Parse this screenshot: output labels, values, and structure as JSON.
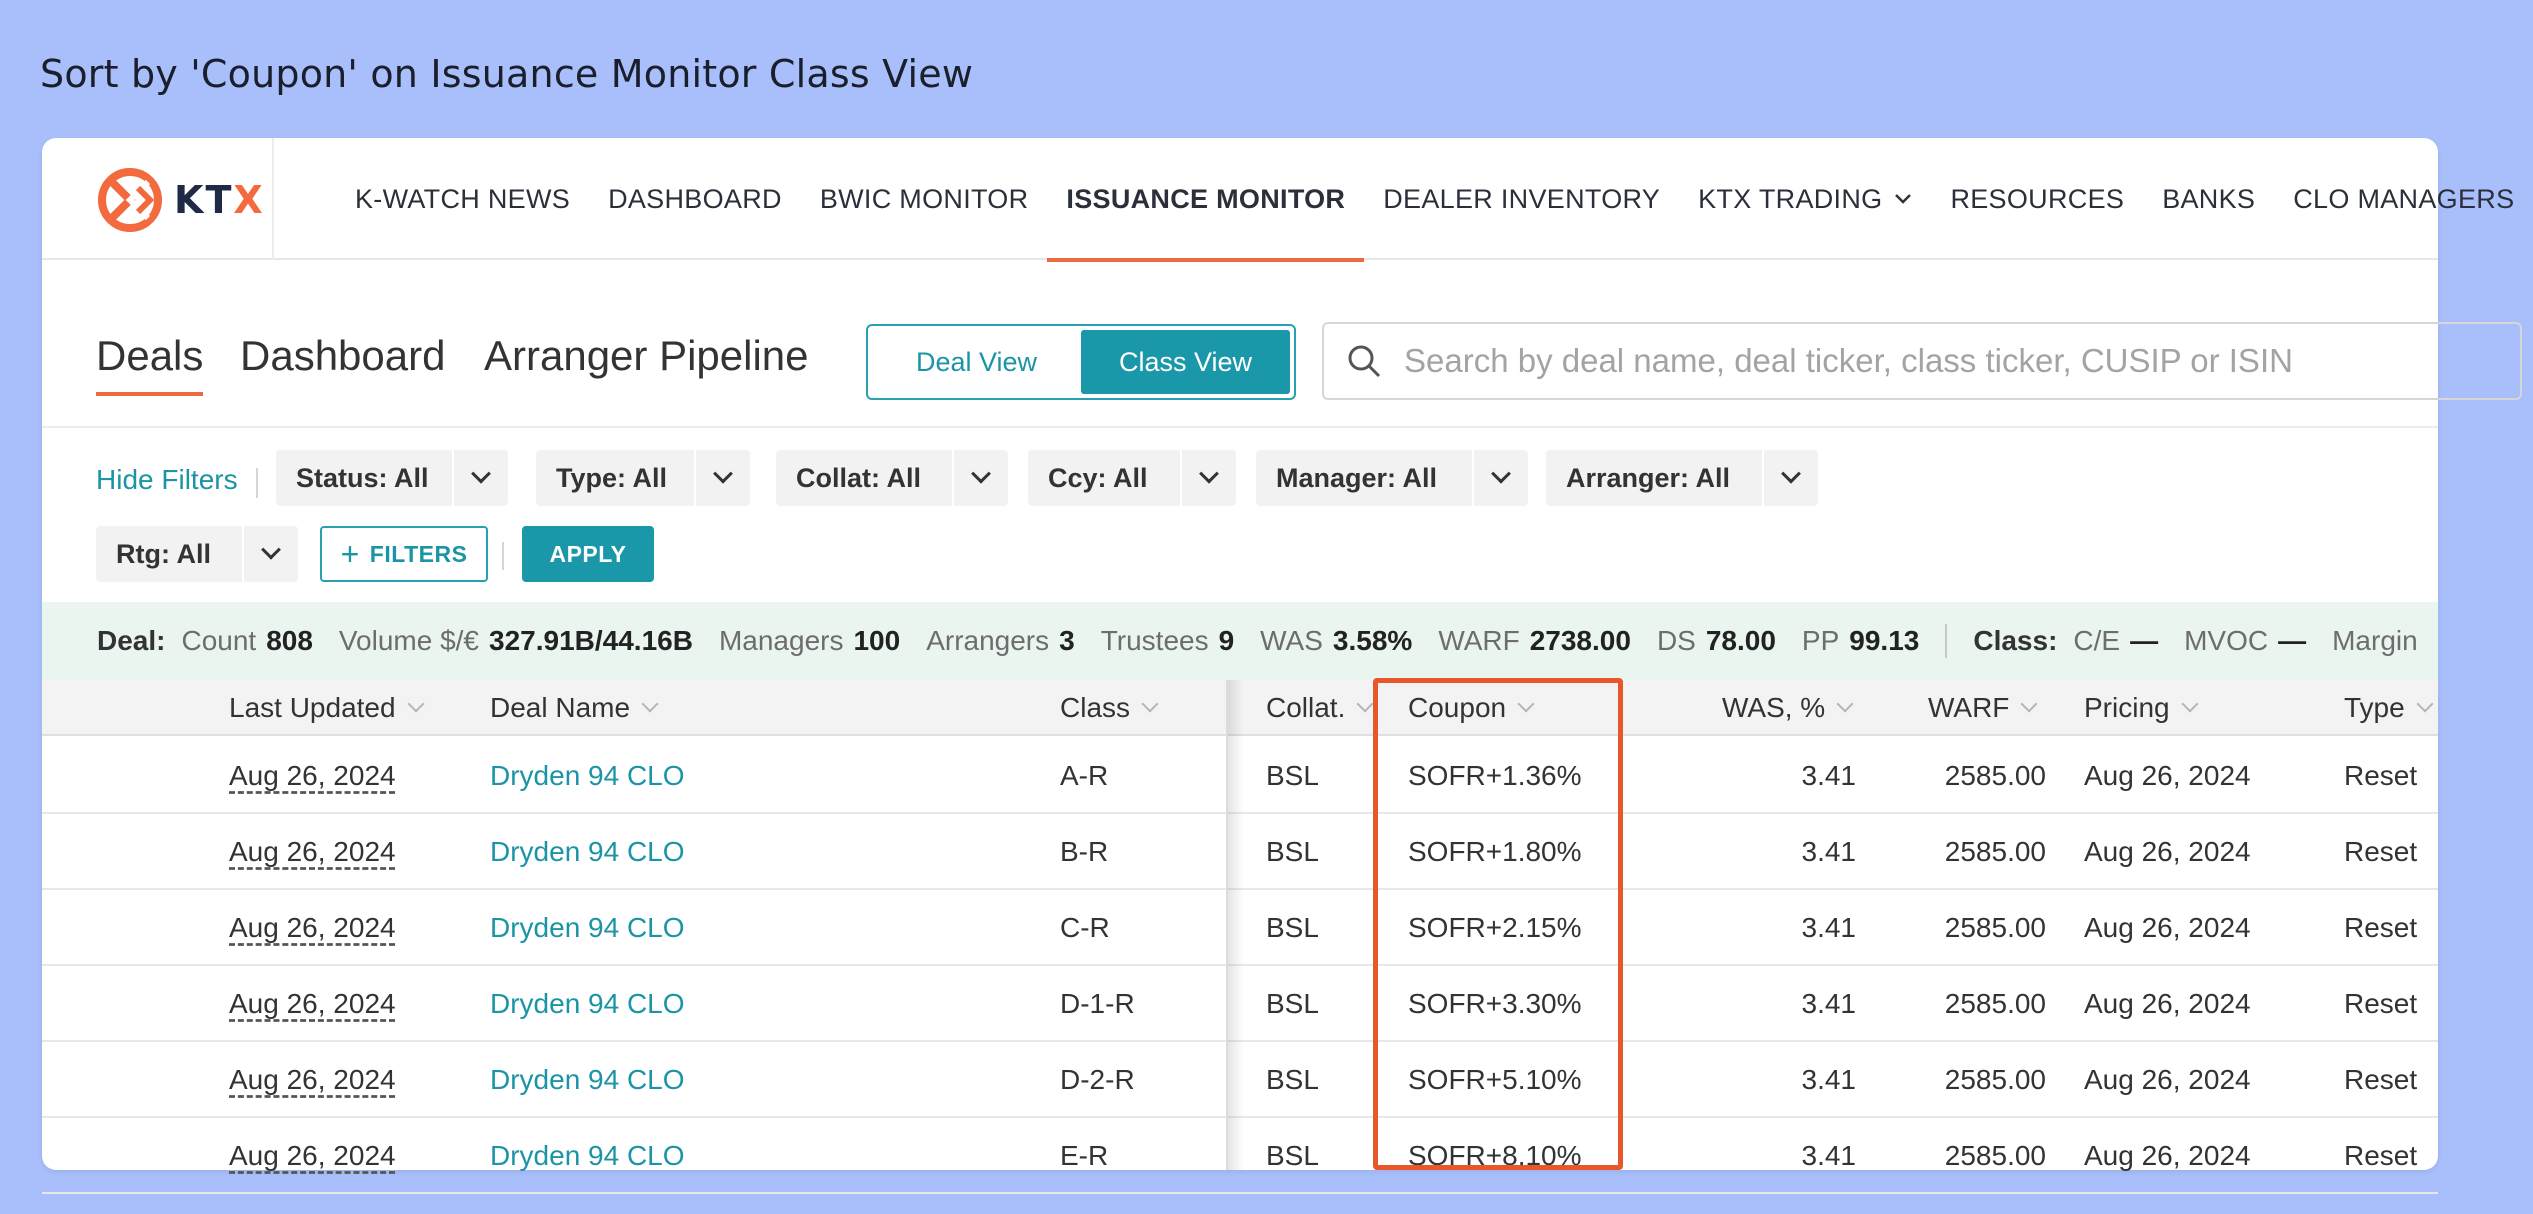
{
  "caption": "Sort by 'Coupon' on Issuance Monitor Class View",
  "logo": {
    "text_main": "KT",
    "text_accent": "X"
  },
  "nav": {
    "items": [
      {
        "label": "K-WATCH NEWS"
      },
      {
        "label": "DASHBOARD"
      },
      {
        "label": "BWIC MONITOR"
      },
      {
        "label": "ISSUANCE MONITOR",
        "active": true
      },
      {
        "label": "DEALER INVENTORY"
      },
      {
        "label": "KTX TRADING",
        "dropdown": true
      },
      {
        "label": "RESOURCES"
      },
      {
        "label": "BANKS"
      },
      {
        "label": "CLO MANAGERS"
      }
    ]
  },
  "subtabs": [
    "Deals",
    "Dashboard",
    "Arranger Pipeline"
  ],
  "view_toggle": {
    "deal": "Deal View",
    "class": "Class View",
    "selected": "Class View"
  },
  "search": {
    "placeholder": "Search by deal name, deal ticker, class ticker, CUSIP or ISIN"
  },
  "filters": {
    "hide_label": "Hide Filters",
    "chips": [
      "Status: All",
      "Type: All",
      "Collat: All",
      "Ccy: All",
      "Manager: All",
      "Arranger: All",
      "Rtg: All"
    ],
    "more_label": "FILTERS",
    "apply_label": "APPLY"
  },
  "summary": {
    "deal_key": "Deal:",
    "count_label": "Count",
    "count": "808",
    "volume_label": "Volume $/€",
    "volume": "327.91B/44.16B",
    "managers_label": "Managers",
    "managers": "100",
    "arrangers_label": "Arrangers",
    "arrangers": "3",
    "trustees_label": "Trustees",
    "trustees": "9",
    "was_label": "WAS",
    "was": "3.58%",
    "warf_label": "WARF",
    "warf": "2738.00",
    "ds_label": "DS",
    "ds": "78.00",
    "pp_label": "PP",
    "pp": "99.13",
    "class_key": "Class:",
    "ce_label": "C/E",
    "ce": "—",
    "mvoc_label": "MVOC",
    "mvoc": "—",
    "margin_label": "Margin"
  },
  "table": {
    "columns": [
      "Last Updated",
      "Deal Name",
      "Class",
      "Collat.",
      "Coupon",
      "WAS, %",
      "WARF",
      "Pricing",
      "Type"
    ],
    "rows": [
      {
        "updated": "Aug 26, 2024",
        "deal": "Dryden 94 CLO",
        "class": "A-R",
        "collat": "BSL",
        "coupon": "SOFR+1.36%",
        "was": "3.41",
        "warf": "2585.00",
        "pricing": "Aug 26, 2024",
        "type": "Reset"
      },
      {
        "updated": "Aug 26, 2024",
        "deal": "Dryden 94 CLO",
        "class": "B-R",
        "collat": "BSL",
        "coupon": "SOFR+1.80%",
        "was": "3.41",
        "warf": "2585.00",
        "pricing": "Aug 26, 2024",
        "type": "Reset"
      },
      {
        "updated": "Aug 26, 2024",
        "deal": "Dryden 94 CLO",
        "class": "C-R",
        "collat": "BSL",
        "coupon": "SOFR+2.15%",
        "was": "3.41",
        "warf": "2585.00",
        "pricing": "Aug 26, 2024",
        "type": "Reset"
      },
      {
        "updated": "Aug 26, 2024",
        "deal": "Dryden 94 CLO",
        "class": "D-1-R",
        "collat": "BSL",
        "coupon": "SOFR+3.30%",
        "was": "3.41",
        "warf": "2585.00",
        "pricing": "Aug 26, 2024",
        "type": "Reset"
      },
      {
        "updated": "Aug 26, 2024",
        "deal": "Dryden 94 CLO",
        "class": "D-2-R",
        "collat": "BSL",
        "coupon": "SOFR+5.10%",
        "was": "3.41",
        "warf": "2585.00",
        "pricing": "Aug 26, 2024",
        "type": "Reset"
      },
      {
        "updated": "Aug 26, 2024",
        "deal": "Dryden 94 CLO",
        "class": "E-R",
        "collat": "BSL",
        "coupon": "SOFR+8.10%",
        "was": "3.41",
        "warf": "2585.00",
        "pricing": "Aug 26, 2024",
        "type": "Reset"
      }
    ]
  },
  "colors": {
    "accent": "#1a97a8",
    "highlight": "#e8572a",
    "nav_active": "#ec6a40",
    "background": "#a8bffb"
  }
}
